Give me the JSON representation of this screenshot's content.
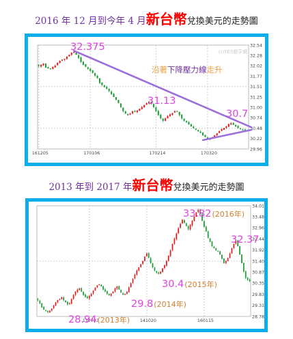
{
  "colors": {
    "frame": "#0aaeea",
    "heading": "#7030a0",
    "accent": "#ff0000",
    "up": "#e02020",
    "down": "#1f9e3a",
    "trend": "#9b6fdc",
    "annotation": "#e040e0",
    "note_orange": "#f0a040",
    "note_purple": "#7030a0",
    "year_label": "#d08030"
  },
  "heading1": {
    "pre": "2016 年 12 月到今年 4 月",
    "big": "新台幣",
    "post": "兌換美元的走勢圖"
  },
  "heading2": {
    "pre": "2013 年到 2017 年",
    "big": "新台幣",
    "post": "兌換美元的走勢圖"
  },
  "chart_data": [
    {
      "type": "candlestick",
      "title": "2016 年 12 月到今年 4 月新台幣兌換美元的走勢圖",
      "watermark": "cnYES鉅亨網",
      "ylim": [
        29.96,
        32.54
      ],
      "y_ticks": [
        "32.54",
        "32.28",
        "32.02",
        "31.77",
        "31.51",
        "31.25",
        "31.00",
        "30.74",
        "30.48",
        "30.22",
        "29.96"
      ],
      "x_ticks": [
        "161205",
        "170106",
        "170214",
        "170320"
      ],
      "x_tick_index": [
        0,
        22,
        50,
        72
      ],
      "series": [
        {
          "name": "close",
          "values": [
            32.02,
            32.05,
            32.08,
            31.98,
            31.96,
            31.94,
            32.0,
            32.03,
            32.1,
            32.15,
            32.18,
            32.2,
            32.25,
            32.3,
            32.35,
            32.37,
            32.3,
            32.22,
            32.12,
            32.05,
            32.0,
            31.95,
            31.9,
            31.85,
            31.78,
            31.72,
            31.6,
            31.55,
            31.5,
            31.45,
            31.4,
            31.32,
            31.25,
            31.18,
            31.1,
            31.0,
            30.9,
            30.84,
            30.8,
            30.84,
            30.9,
            30.88,
            30.92,
            30.96,
            31.0,
            31.05,
            31.1,
            31.13,
            31.08,
            31.0,
            30.9,
            30.8,
            30.72,
            30.66,
            30.72,
            30.78,
            30.82,
            30.85,
            30.9,
            30.88,
            30.8,
            30.72,
            30.66,
            30.62,
            30.57,
            30.52,
            30.48,
            30.44,
            30.4,
            30.36,
            30.3,
            30.26,
            30.22,
            30.2,
            30.25,
            30.3,
            30.35,
            30.4,
            30.45,
            30.48,
            30.52,
            30.58,
            30.6,
            30.56,
            30.52,
            30.48,
            30.46,
            30.44,
            30.42,
            30.4
          ]
        }
      ],
      "annotations": [
        {
          "text": "32.375",
          "at_index": 15,
          "value": 32.375
        },
        {
          "text": "31.13",
          "at_index": 47,
          "value": 31.13
        },
        {
          "text": "30.7",
          "at_index": 86,
          "value": 30.7
        }
      ],
      "trend_lines": [
        {
          "kind": "resistance",
          "from": {
            "index": 15,
            "value": 32.4
          },
          "to": {
            "index": 89,
            "value": 30.48
          }
        },
        {
          "kind": "support",
          "from": {
            "index": 70,
            "value": 30.18
          },
          "to": {
            "index": 89,
            "value": 30.42
          }
        }
      ],
      "note": {
        "orange1": "沿著",
        "purple": "下降壓力線",
        "orange2": "走升"
      }
    },
    {
      "type": "candlestick",
      "title": "2013 年到 2017 年新台幣兌換美元的走勢圖",
      "ylim": [
        28.78,
        34.01
      ],
      "y_ticks": [
        "34.01",
        "33.48",
        "32.96",
        "32.44",
        "31.92",
        "31.40",
        "30.87",
        "30.35",
        "29.83",
        "29.31",
        "28.78"
      ],
      "x_ticks": [
        "130723",
        "141020",
        "160115"
      ],
      "x_tick_index": [
        26,
        55,
        84
      ],
      "series": [
        {
          "name": "close",
          "values": [
            29.55,
            29.4,
            29.2,
            29.1,
            29.05,
            28.98,
            29.05,
            29.15,
            29.3,
            29.45,
            29.55,
            29.6,
            29.7,
            29.55,
            29.45,
            29.35,
            29.4,
            29.6,
            29.8,
            29.95,
            30.05,
            30.1,
            29.95,
            29.8,
            29.7,
            29.65,
            29.75,
            29.85,
            30.0,
            30.15,
            30.25,
            30.3,
            30.2,
            30.05,
            29.95,
            29.85,
            29.78,
            29.85,
            29.95,
            30.1,
            30.2,
            30.05,
            29.9,
            29.8,
            29.85,
            29.95,
            30.15,
            30.35,
            30.55,
            30.75,
            30.95,
            31.1,
            31.25,
            31.4,
            31.6,
            31.75,
            31.55,
            31.3,
            31.1,
            30.95,
            30.85,
            30.8,
            30.9,
            31.05,
            31.2,
            31.4,
            31.65,
            31.9,
            32.2,
            32.45,
            32.7,
            32.95,
            33.15,
            33.35,
            33.2,
            33.05,
            32.9,
            33.1,
            33.3,
            33.5,
            33.7,
            33.82,
            33.6,
            33.3,
            33.0,
            32.8,
            32.5,
            32.3,
            32.1,
            32.0,
            31.9,
            31.85,
            31.7,
            31.5,
            31.3,
            31.4,
            31.55,
            31.75,
            32.0,
            32.2,
            32.37,
            32.1,
            31.7,
            31.3,
            30.9,
            30.6,
            30.5,
            30.45
          ]
        }
      ],
      "annotations": [
        {
          "text": "28.94",
          "year": "(2013年)",
          "at_index": 8,
          "value": 28.94
        },
        {
          "text": "29.8",
          "year": "(2014年)",
          "at_index": 43,
          "value": 29.8
        },
        {
          "text": "30.4",
          "year": "(2015年)",
          "at_index": 59,
          "value": 30.4
        },
        {
          "text": "33.82",
          "year": "(2016年)",
          "at_index": 81,
          "value": 33.82
        },
        {
          "text": "32.37",
          "at_index": 100,
          "value": 32.37
        }
      ]
    }
  ]
}
